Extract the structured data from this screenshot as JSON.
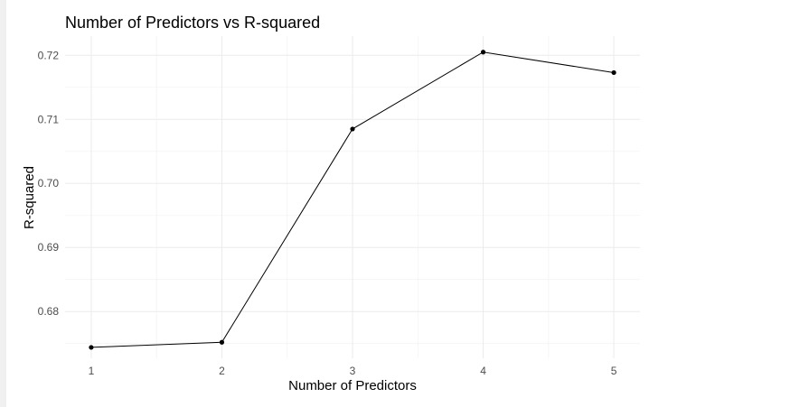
{
  "chart_data": {
    "type": "line",
    "title": "Number of Predictors vs R-squared",
    "xlabel": "Number of Predictors",
    "ylabel": "R-squared",
    "x": [
      1,
      2,
      3,
      4,
      5
    ],
    "x_tick_labels": [
      "1",
      "2",
      "3",
      "4",
      "5"
    ],
    "y_ticks": [
      0.68,
      0.69,
      0.7,
      0.71,
      0.72
    ],
    "y_tick_labels": [
      "0.68",
      "0.69",
      "0.70",
      "0.71",
      "0.72"
    ],
    "xlim": [
      0.8,
      5.2
    ],
    "ylim": [
      0.6727,
      0.723
    ],
    "series": [
      {
        "values": [
          0.6744,
          0.6752,
          0.7085,
          0.7205,
          0.7173
        ]
      }
    ],
    "grid": true,
    "colors": {
      "line": "#000000",
      "grid": "#ebebeb",
      "text": "#4d4d4d"
    }
  }
}
